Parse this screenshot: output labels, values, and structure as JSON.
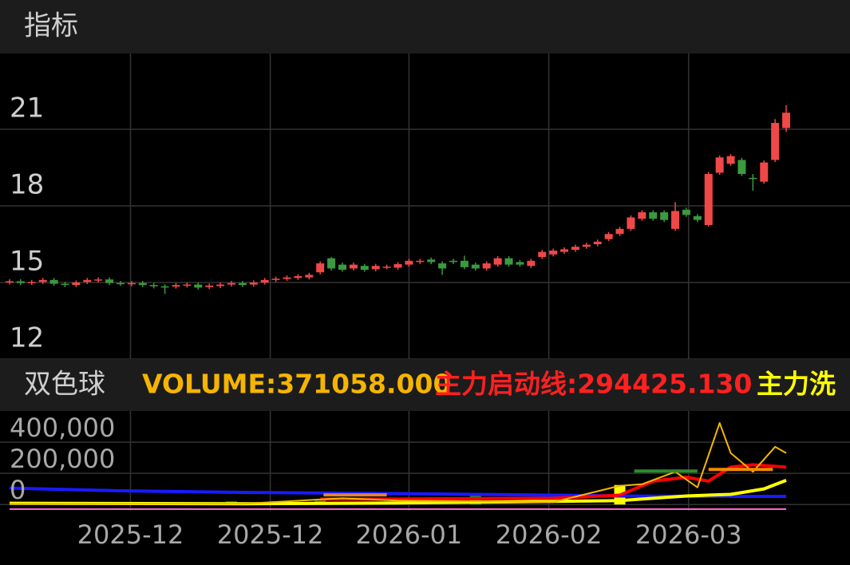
{
  "header": {
    "title": "指标"
  },
  "indicator_bar": {
    "name": "双色球",
    "items": [
      {
        "text": "VOLUME:371058.000",
        "color": "#f5b400"
      },
      {
        "text": "主力启动线:294425.130",
        "color": "#ff2020"
      },
      {
        "text": "主力洗",
        "color": "#ffff00"
      }
    ]
  },
  "chart_data": [
    {
      "type": "candlestick",
      "open": [
        15.0,
        15.05,
        14.98,
        15.02,
        15.1,
        14.95,
        14.9,
        15.02,
        15.08,
        15.12,
        14.98,
        14.93,
        14.98,
        14.9,
        14.85,
        14.84,
        14.88,
        14.92,
        14.82,
        14.86,
        14.92,
        14.98,
        14.92,
        15.0,
        15.1,
        15.14,
        15.18,
        15.2,
        15.4,
        15.95,
        15.7,
        15.55,
        15.65,
        15.52,
        15.6,
        15.58,
        15.7,
        15.8,
        15.9,
        15.75,
        15.85,
        15.85,
        15.7,
        15.55,
        15.7,
        15.95,
        15.8,
        15.65,
        16.0,
        16.1,
        16.2,
        16.28,
        16.4,
        16.5,
        16.7,
        16.9,
        17.1,
        17.5,
        17.75,
        17.75,
        17.1,
        17.85,
        17.6,
        17.25,
        19.3,
        19.65,
        19.8,
        19.1,
        18.95,
        19.8,
        21.05
      ],
      "high": [
        15.13,
        15.13,
        15.1,
        15.18,
        15.18,
        15.03,
        15.08,
        15.18,
        15.2,
        15.2,
        15.06,
        15.06,
        15.06,
        14.98,
        14.93,
        14.98,
        15.0,
        15.0,
        14.96,
        15.0,
        15.06,
        15.06,
        15.08,
        15.18,
        15.23,
        15.28,
        15.33,
        15.38,
        15.83,
        16.0,
        15.78,
        15.78,
        15.73,
        15.73,
        15.7,
        15.8,
        15.93,
        15.93,
        15.98,
        15.83,
        15.93,
        16.05,
        15.78,
        15.83,
        16.03,
        16.03,
        15.88,
        15.93,
        16.28,
        16.33,
        16.38,
        16.48,
        16.56,
        16.68,
        16.98,
        17.18,
        17.63,
        17.83,
        17.83,
        17.83,
        18.15,
        17.93,
        17.68,
        19.33,
        19.98,
        20.03,
        19.88,
        19.25,
        19.78,
        21.4,
        21.95
      ],
      "low": [
        14.92,
        14.9,
        14.9,
        14.94,
        14.87,
        14.82,
        14.82,
        14.94,
        15.0,
        14.9,
        14.87,
        14.85,
        14.82,
        14.77,
        14.55,
        14.76,
        14.8,
        14.72,
        14.74,
        14.78,
        14.84,
        14.82,
        14.84,
        14.92,
        15.02,
        15.06,
        15.1,
        15.12,
        15.32,
        15.47,
        15.42,
        15.47,
        15.42,
        15.44,
        15.52,
        15.5,
        15.62,
        15.72,
        15.72,
        15.3,
        15.72,
        15.52,
        15.47,
        15.47,
        15.62,
        15.62,
        15.62,
        15.57,
        15.92,
        16.02,
        16.12,
        16.2,
        16.32,
        16.42,
        16.62,
        16.82,
        17.02,
        17.42,
        17.42,
        17.37,
        17.02,
        17.57,
        17.37,
        17.2,
        19.22,
        19.57,
        19.17,
        18.6,
        18.87,
        19.72,
        20.9
      ],
      "close": [
        15.05,
        14.98,
        15.02,
        15.1,
        14.95,
        14.9,
        15.0,
        15.1,
        15.12,
        14.98,
        14.95,
        14.98,
        14.9,
        14.85,
        14.82,
        14.9,
        14.92,
        14.8,
        14.88,
        14.92,
        14.98,
        14.9,
        15.0,
        15.1,
        15.15,
        15.2,
        15.25,
        15.3,
        15.75,
        15.55,
        15.5,
        15.7,
        15.5,
        15.65,
        15.62,
        15.72,
        15.85,
        15.85,
        15.8,
        15.55,
        15.8,
        15.6,
        15.55,
        15.75,
        15.95,
        15.7,
        15.7,
        15.85,
        16.2,
        16.25,
        16.3,
        16.4,
        16.48,
        16.6,
        16.9,
        17.1,
        17.55,
        17.75,
        17.5,
        17.45,
        17.8,
        17.65,
        17.45,
        19.25,
        19.9,
        19.95,
        19.25,
        19.05,
        19.7,
        21.25,
        21.65
      ],
      "xlim": [
        -0.86,
        75.75
      ],
      "ylim": [
        12,
        23.97
      ],
      "yticks": [
        12,
        15,
        18,
        21
      ],
      "up_color": "#f04848",
      "down_color": "#3a9a3e",
      "grid": true
    },
    {
      "type": "line",
      "xlim": [
        -0.86,
        75.75
      ],
      "ylim": [
        -40000,
        600000
      ],
      "yticks": [
        0,
        {
          "value": 200000,
          "label": "200,000"
        },
        {
          "value": 400000,
          "label": "400,000"
        }
      ],
      "xticks": [
        {
          "value": 10.9,
          "label": "2025-12"
        },
        {
          "value": 23.5,
          "label": "2025-12"
        },
        {
          "value": 36,
          "label": "2026-01"
        },
        {
          "value": 48.6,
          "label": "2026-02"
        },
        {
          "value": 61.2,
          "label": "2026-03"
        }
      ],
      "grid": true,
      "bars": {
        "x": [
          6,
          11,
          14,
          20,
          24,
          28,
          42,
          55
        ],
        "values": [
          10000,
          10000,
          10000,
          20000,
          20000,
          25000,
          75000,
          125000
        ],
        "colors": [
          "#1f8f1f",
          "#1f8f1f",
          "#1f8f1f",
          "#1f8f1f",
          "#1f8f1f",
          "#1f8f1f",
          "#1f8f1f",
          "#ffff00"
        ]
      },
      "segments": [
        {
          "x": [
            28.3,
            34
          ],
          "value": 62000,
          "color": "#e08040"
        },
        {
          "x": [
            56.3,
            62
          ],
          "value": 215000,
          "color": "#2e8b2e"
        },
        {
          "x": [
            63,
            68.8
          ],
          "value": 225000,
          "color": "#f08c00"
        }
      ],
      "series": [
        {
          "color": "#1a1aff",
          "x": [
            0,
            10,
            21,
            35,
            49,
            55,
            62,
            70
          ],
          "values": [
            105000,
            88000,
            78000,
            70000,
            60000,
            55000,
            52000,
            52000
          ]
        },
        {
          "color": "#ffff00",
          "x": [
            0,
            21,
            35,
            42,
            55,
            61,
            65,
            68,
            70
          ],
          "values": [
            8000,
            5000,
            10000,
            15000,
            25000,
            55000,
            65000,
            100000,
            155000
          ]
        },
        {
          "color": "#ff0000",
          "x": [
            28,
            35,
            49,
            55,
            58,
            61,
            63,
            65,
            67,
            70
          ],
          "values": [
            35000,
            35000,
            40000,
            60000,
            150000,
            175000,
            150000,
            240000,
            255000,
            240000
          ]
        },
        {
          "color": "#f5b800",
          "x": [
            0,
            21,
            30,
            35,
            49,
            55,
            57,
            60,
            62,
            64,
            65,
            67,
            69,
            70
          ],
          "values": [
            5000,
            5000,
            40000,
            25000,
            15000,
            120000,
            130000,
            210000,
            110000,
            523000,
            330000,
            210000,
            370000,
            330000
          ]
        },
        {
          "color": "#ff66cc",
          "x": [
            0,
            70
          ],
          "values": [
            -30000,
            -30000
          ]
        }
      ]
    }
  ]
}
